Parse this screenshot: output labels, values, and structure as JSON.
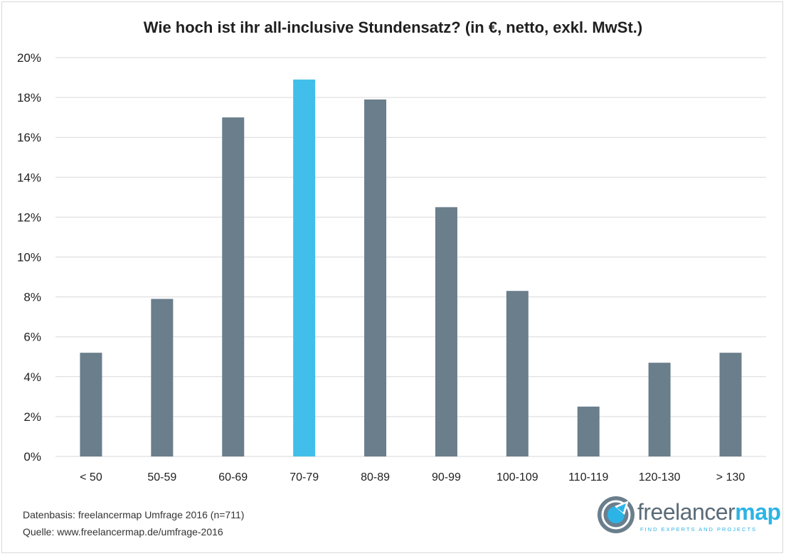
{
  "chart_data": {
    "type": "bar",
    "title": "Wie hoch ist ihr all-inclusive Stundensatz? (in €, netto, exkl. MwSt.)",
    "xlabel": "",
    "ylabel": "",
    "categories": [
      "< 50",
      "50-59",
      "60-69",
      "70-79",
      "80-89",
      "90-99",
      "100-109",
      "110-119",
      "120-130",
      "> 130"
    ],
    "values": [
      5.2,
      7.9,
      17.0,
      18.9,
      17.9,
      12.5,
      8.3,
      2.5,
      4.7,
      5.2
    ],
    "value_unit": "%",
    "ylim": [
      0,
      20
    ],
    "yticks": [
      "0%",
      "2%",
      "4%",
      "6%",
      "8%",
      "10%",
      "12%",
      "14%",
      "16%",
      "18%",
      "20%"
    ],
    "grid": true,
    "legend": "none",
    "highlight_category": "70-79",
    "colors": {
      "bar": "#6a7e8c",
      "highlight": "#41bfea",
      "grid": "#d9d9d9",
      "text": "#1f1f1f"
    }
  },
  "footnotes": {
    "source_data": "Datenbasis: freelancermap Umfrage 2016 (n=711)",
    "source_url": "Quelle: www.freelancermap.de/umfrage-2016"
  },
  "logo": {
    "word_part1": "freelancer",
    "word_part2": "map",
    "tagline": "FIND EXPERTS AND PROJECTS",
    "icon": "globe-arrow-icon"
  }
}
